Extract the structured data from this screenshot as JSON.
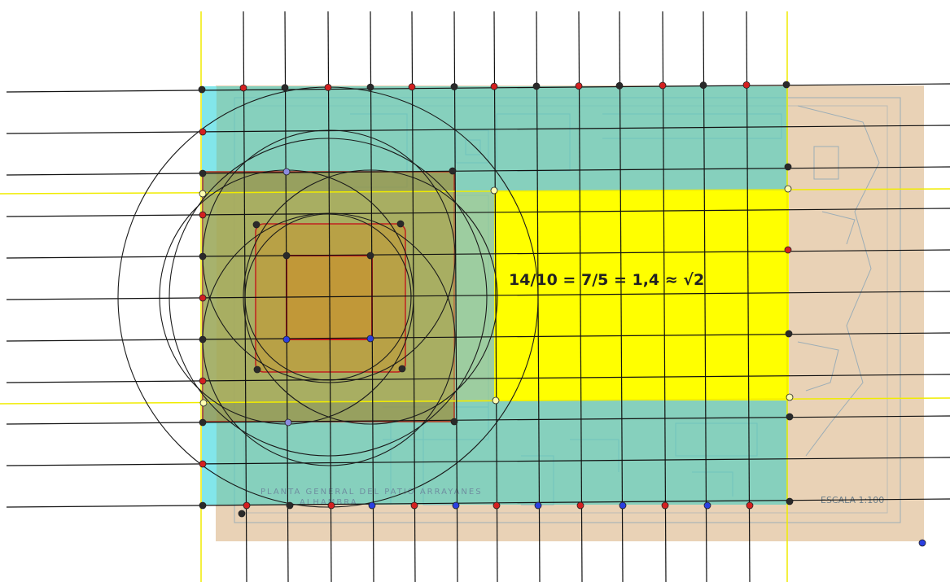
{
  "formula": "14/10 = 7/5 = 1,4 ≈ √2",
  "plan": {
    "title": "PLANTA GENERAL DEL PATIO ARRAYANES",
    "subtitle": "ALHAMBRA",
    "scale": "ESCALA 1:100"
  },
  "colors": {
    "background": "#ffffff",
    "paper": "#e9d0b4",
    "teal_overlay": "#5fcfbf",
    "yellow_rect": "#ffff00",
    "olive_overlay": "#a49a2c",
    "gold_square": "#c29a3a",
    "red_square": "#d01818",
    "guide_yellow": "#f4f000",
    "grid_line": "#111111",
    "circle_line": "#1a1a1a",
    "point_red": "#d42020",
    "point_black": "#2a2a2a",
    "point_blue": "#2b3fe0",
    "point_violet": "#8c8ce0",
    "point_yellow": "#ffffb0"
  }
}
